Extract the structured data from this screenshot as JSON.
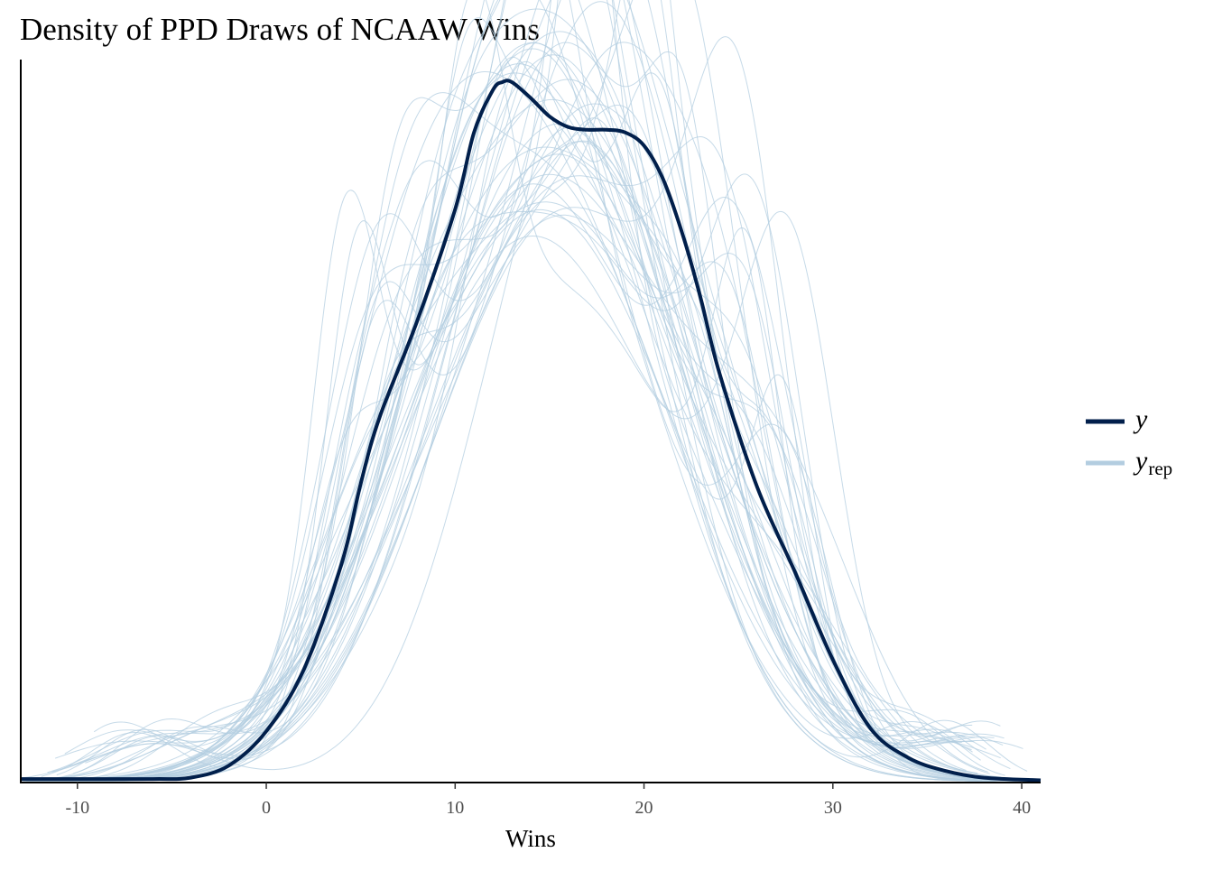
{
  "chart_data": {
    "type": "line",
    "title": "Density of PPD Draws of NCAAW Wins",
    "xlabel": "Wins",
    "ylabel": "",
    "xlim": [
      -13,
      41
    ],
    "ylim": [
      0,
      0.0545
    ],
    "x_ticks": [
      -10,
      0,
      10,
      20,
      30,
      40
    ],
    "x_tick_labels": [
      "-10",
      "0",
      "10",
      "20",
      "30",
      "40"
    ],
    "grid": false,
    "legend_position": "right",
    "legend": [
      {
        "label": "y",
        "subscript": "",
        "color": "#011f4b"
      },
      {
        "label": "y",
        "subscript": "rep",
        "color": "#b3cde0"
      }
    ],
    "series": [
      {
        "name": "y",
        "color": "#011f4b",
        "x": [
          -13,
          -10,
          -6,
          -4,
          -2,
          0,
          2,
          4,
          5,
          6,
          8,
          10,
          11,
          12,
          12.5,
          13,
          14,
          15,
          16,
          17,
          18,
          19,
          20,
          21,
          22,
          23,
          24,
          26,
          28,
          30,
          32,
          34,
          36,
          38,
          41
        ],
        "y": [
          0.0002,
          0.0002,
          0.0002,
          0.0003,
          0.0012,
          0.0038,
          0.0085,
          0.0165,
          0.0225,
          0.0275,
          0.0348,
          0.0432,
          0.049,
          0.0522,
          0.0528,
          0.0528,
          0.0516,
          0.0502,
          0.0494,
          0.0492,
          0.0492,
          0.049,
          0.048,
          0.0455,
          0.0415,
          0.0365,
          0.0308,
          0.0222,
          0.0158,
          0.0092,
          0.004,
          0.0018,
          0.0008,
          0.0003,
          0.0001
        ]
      }
    ],
    "replicates": {
      "name": "y_rep",
      "color": "#b3cde0",
      "count": 50
    }
  }
}
